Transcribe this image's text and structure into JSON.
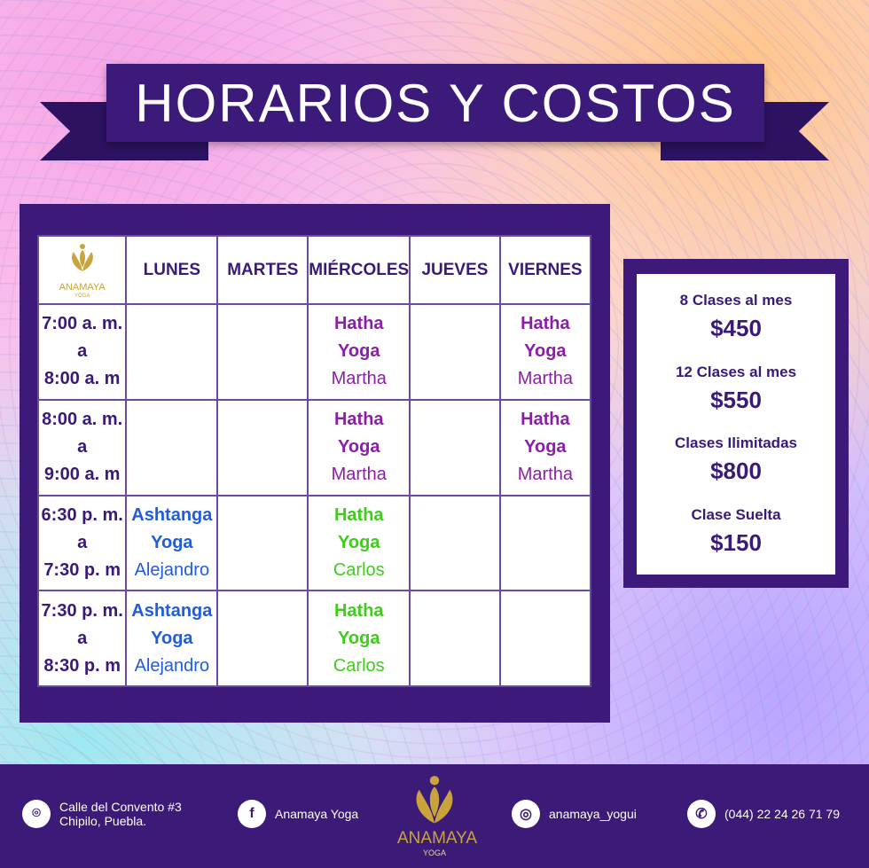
{
  "title": "HORARIOS Y COSTOS",
  "logo": {
    "name": "ANAMAYA",
    "sub": "YOGA",
    "color": "#c9a43c"
  },
  "schedule": {
    "days": [
      "LUNES",
      "MARTES",
      "MIÉRCOLES",
      "JUEVES",
      "VIERNES"
    ],
    "rows": [
      {
        "time": [
          "7:00 a. m.",
          "a",
          "8:00 a. m"
        ],
        "cells": [
          null,
          null,
          {
            "c1": "Hatha",
            "c2": "Yoga",
            "inst": "Martha",
            "color": "#8a1fa6"
          },
          null,
          {
            "c1": "Hatha",
            "c2": "Yoga",
            "inst": "Martha",
            "color": "#8a1fa6"
          }
        ]
      },
      {
        "time": [
          "8:00 a. m.",
          "a",
          "9:00 a. m"
        ],
        "cells": [
          null,
          null,
          {
            "c1": "Hatha",
            "c2": "Yoga",
            "inst": "Martha",
            "color": "#8a1fa6"
          },
          null,
          {
            "c1": "Hatha",
            "c2": "Yoga",
            "inst": "Martha",
            "color": "#8a1fa6"
          }
        ]
      },
      {
        "time": [
          "6:30 p. m.",
          "a",
          "7:30 p. m"
        ],
        "cells": [
          {
            "c1": "Ashtanga",
            "c2": "Yoga",
            "inst": "Alejandro",
            "color": "#1f5ce0"
          },
          null,
          {
            "c1": "Hatha",
            "c2": "Yoga",
            "inst": "Carlos",
            "color": "#3fcc1c"
          },
          null,
          null
        ]
      },
      {
        "time": [
          "7:30 p. m.",
          "a",
          "8:30 p. m"
        ],
        "cells": [
          {
            "c1": "Ashtanga",
            "c2": "Yoga",
            "inst": "Alejandro",
            "color": "#1f5ce0"
          },
          null,
          {
            "c1": "Hatha",
            "c2": "Yoga",
            "inst": "Carlos",
            "color": "#3fcc1c"
          },
          null,
          null
        ]
      }
    ]
  },
  "prices": [
    {
      "label": "8 Clases al mes",
      "value": "$450"
    },
    {
      "label": "12 Clases al mes",
      "value": "$550"
    },
    {
      "label": "Clases Ilimitadas",
      "value": "$800"
    },
    {
      "label": "Clase Suelta",
      "value": "$150"
    }
  ],
  "footer": {
    "address": [
      "Calle del Convento #3",
      "Chipilo, Puebla."
    ],
    "facebook": "Anamaya Yoga",
    "instagram": "anamaya_yogui",
    "whatsapp": "(044) 22 24 26 71 79"
  }
}
